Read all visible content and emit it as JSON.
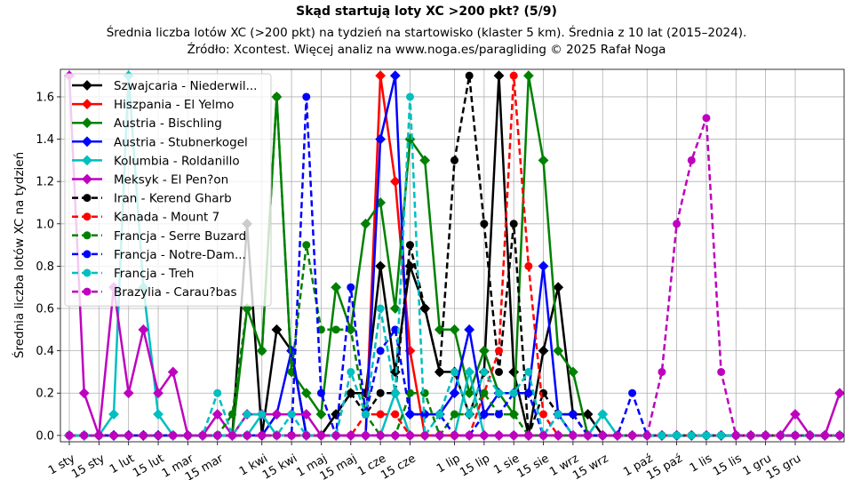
{
  "chart_data": {
    "type": "line",
    "title": "Skąd startują loty XC >200 pkt? (5/9)",
    "subtitle_lines": [
      "Średnia liczba lotów XC (>200 pkt) na tydzień na startowisko (klaster 5 km). Średnia z 10 lat (2015–2024).",
      "Źródło: Xcontest. Więcej analiz na www.noga.es/paragliding © 2025 Rafał Noga"
    ],
    "xlabel": "",
    "ylabel": "Średnia liczba lotów XC na tydzień",
    "x_unit": "week of year (1–53)",
    "xlim": [
      0.4,
      53.3
    ],
    "ylim": [
      -0.03,
      1.73
    ],
    "yticks": [
      0.0,
      0.2,
      0.4,
      0.6,
      0.8,
      1.0,
      1.2,
      1.4,
      1.6
    ],
    "ytick_labels": [
      "0.0",
      "0.2",
      "0.4",
      "0.6",
      "0.8",
      "1.0",
      "1.2",
      "1.4",
      "1.6"
    ],
    "xticks": [
      1,
      3,
      5,
      7,
      9,
      11,
      14,
      16,
      18,
      20,
      22,
      24,
      27,
      29,
      31,
      33,
      35,
      37,
      40,
      42,
      44,
      46,
      48,
      50
    ],
    "xtick_labels": [
      "1 sty",
      "15 sty",
      "1 lut",
      "15 lut",
      "1 mar",
      "15 mar",
      "1 kwi",
      "15 kwi",
      "1 maj",
      "15 maj",
      "1 cze",
      "15 cze",
      "1 lip",
      "15 lip",
      "1 sie",
      "15 sie",
      "1 wrz",
      "15 wrz",
      "1 paź",
      "15 paź",
      "1 lis",
      "15 lis",
      "1 gru",
      "15 gru"
    ],
    "grid": true,
    "legend_position": "upper-left",
    "series": [
      {
        "name": "Szwajcaria - Niederwil...",
        "color": "#000000",
        "dash": false,
        "marker": "diamond",
        "values": [
          0,
          0,
          0,
          0,
          0,
          0,
          0,
          0,
          0,
          0,
          0,
          0,
          1.0,
          0,
          0.5,
          0.4,
          0,
          0,
          0.1,
          0.2,
          0.2,
          0.8,
          0.3,
          0.8,
          0.6,
          0.3,
          0.3,
          0.1,
          0.3,
          1.7,
          0.3,
          0,
          0.4,
          0.7,
          0.1,
          0.1,
          0,
          0,
          0,
          0,
          0,
          0,
          0,
          0,
          0,
          0,
          0,
          0,
          0,
          0,
          0,
          0,
          0
        ]
      },
      {
        "name": "Hiszpania - El Yelmo",
        "color": "#ff0000",
        "dash": false,
        "marker": "diamond",
        "values": [
          0,
          0,
          0,
          0,
          0,
          0,
          0,
          0,
          0,
          0,
          0,
          0,
          0,
          0,
          0,
          0,
          0,
          0,
          0,
          0,
          0,
          1.7,
          1.2,
          0.4,
          0,
          0,
          0,
          0,
          0,
          0,
          0,
          0,
          0,
          0,
          0,
          0,
          0,
          0,
          0,
          0,
          0,
          0,
          0,
          0,
          0,
          0,
          0,
          0,
          0,
          0,
          0,
          0,
          0
        ]
      },
      {
        "name": "Austria - Bischling",
        "color": "#008000",
        "dash": false,
        "marker": "diamond",
        "values": [
          0,
          0,
          0,
          0,
          0,
          0,
          0,
          0,
          0,
          0,
          0,
          0,
          0.6,
          0.4,
          1.6,
          0.3,
          0.2,
          0.1,
          0.7,
          0.5,
          1.0,
          1.1,
          0.6,
          1.4,
          1.3,
          0.5,
          0.5,
          0.2,
          0.4,
          0.2,
          0.1,
          1.7,
          1.3,
          0.4,
          0.3,
          0,
          0,
          0,
          0,
          0,
          0,
          0,
          0,
          0,
          0,
          0,
          0,
          0,
          0,
          0,
          0,
          0,
          0
        ]
      },
      {
        "name": "Austria - Stubnerkogel",
        "color": "#0000ff",
        "dash": false,
        "marker": "diamond",
        "values": [
          0,
          0,
          0,
          0,
          0,
          0,
          0,
          0,
          0,
          0,
          0,
          0,
          0,
          0,
          0.1,
          0.4,
          0,
          0,
          0,
          0,
          0,
          1.4,
          1.7,
          0.1,
          0.1,
          0.1,
          0.2,
          0.5,
          0.1,
          0.2,
          0.2,
          0.2,
          0.8,
          0.1,
          0,
          0,
          0,
          0,
          0,
          0,
          0,
          0,
          0,
          0,
          0,
          0,
          0,
          0,
          0,
          0,
          0,
          0,
          0
        ]
      },
      {
        "name": "Kolumbia - Roldanillo",
        "color": "#00bfbf",
        "dash": false,
        "marker": "diamond",
        "values": [
          0,
          0,
          0,
          0.1,
          1.7,
          0.7,
          0.1,
          0,
          0,
          0,
          0,
          0,
          0,
          0.1,
          0,
          0,
          0,
          0,
          0,
          0,
          0,
          0,
          0.2,
          0,
          0,
          0,
          0,
          0.3,
          0,
          0,
          0,
          0,
          0,
          0,
          0,
          0,
          0.1,
          0,
          0,
          0,
          0,
          0,
          0,
          0,
          0,
          0,
          0,
          0,
          0,
          0,
          0,
          0,
          0
        ]
      },
      {
        "name": "Meksyk - El Pen?on",
        "color": "#bf00bf",
        "dash": false,
        "marker": "diamond",
        "values": [
          1.7,
          0.2,
          0,
          0.7,
          0.2,
          0.5,
          0.2,
          0.3,
          0,
          0,
          0.1,
          0,
          0.1,
          0.1,
          0.1,
          0.1,
          0.1,
          0,
          0,
          0,
          0,
          0,
          0,
          0,
          0,
          0,
          0,
          0,
          0,
          0,
          0,
          0,
          0,
          0,
          0,
          0,
          0,
          0,
          0,
          0,
          0,
          0,
          0,
          0,
          0,
          0,
          0,
          0,
          0,
          0.1,
          0,
          0,
          0.2
        ]
      },
      {
        "name": "Iran - Kerend Gharb",
        "color": "#000000",
        "dash": true,
        "marker": "circle",
        "values": [
          0,
          0,
          0,
          0,
          0,
          0,
          0,
          0,
          0,
          0,
          0,
          0,
          0,
          0,
          0,
          0,
          0,
          0,
          0.1,
          0.2,
          0.1,
          0.2,
          0.2,
          0.9,
          0.6,
          0.3,
          1.3,
          1.7,
          1.0,
          0.3,
          1.0,
          0,
          0.2,
          0.1,
          0.1,
          0,
          0,
          0,
          0,
          0,
          0,
          0,
          0,
          0,
          0,
          0,
          0,
          0,
          0,
          0,
          0,
          0,
          0
        ]
      },
      {
        "name": "Kanada - Mount 7",
        "color": "#ff0000",
        "dash": true,
        "marker": "circle",
        "values": [
          0,
          0,
          0,
          0,
          0,
          0,
          0,
          0,
          0,
          0,
          0,
          0,
          0,
          0,
          0,
          0,
          0,
          0,
          0,
          0,
          0.1,
          0.1,
          0.1,
          0,
          0,
          0,
          0,
          0,
          0.2,
          0.4,
          1.7,
          0.8,
          0.1,
          0,
          0,
          0,
          0,
          0,
          0,
          0,
          0,
          0,
          0,
          0,
          0,
          0,
          0,
          0,
          0,
          0,
          0,
          0,
          0
        ]
      },
      {
        "name": "Francja - Serre Buzard",
        "color": "#008000",
        "dash": true,
        "marker": "circle",
        "values": [
          0,
          0,
          0,
          0,
          0,
          0,
          0,
          0,
          0,
          0,
          0,
          0.1,
          0.6,
          0.4,
          1.6,
          0.3,
          0.9,
          0.5,
          0.5,
          0.5,
          0.1,
          0,
          0,
          0.2,
          0.2,
          0,
          0.1,
          0.1,
          0.2,
          0.1,
          0.1,
          0,
          0,
          0,
          0,
          0,
          0,
          0,
          0,
          0,
          0,
          0,
          0,
          0,
          0,
          0,
          0,
          0,
          0,
          0,
          0,
          0,
          0
        ]
      },
      {
        "name": "Francja - Notre-Dam...",
        "color": "#0000ff",
        "dash": true,
        "marker": "circle",
        "values": [
          0,
          0,
          0,
          0,
          0,
          0,
          0,
          0,
          0,
          0,
          0,
          0,
          0,
          0,
          0,
          0,
          1.6,
          0.2,
          0,
          0.7,
          0.1,
          0.4,
          0.5,
          0.1,
          0.1,
          0.1,
          0,
          0,
          0.1,
          0.1,
          0.2,
          0.2,
          0,
          0.1,
          0.1,
          0,
          0,
          0,
          0.2,
          0,
          0,
          0,
          0,
          0,
          0,
          0,
          0,
          0,
          0,
          0,
          0,
          0,
          0
        ]
      },
      {
        "name": "Francja - Treh",
        "color": "#00bfbf",
        "dash": true,
        "marker": "circle",
        "values": [
          0,
          0,
          0,
          0,
          0,
          0,
          0,
          0,
          0,
          0,
          0.2,
          0,
          0.1,
          0.1,
          0,
          0.1,
          0,
          0,
          0,
          0.3,
          0.1,
          0.6,
          0.2,
          1.6,
          0,
          0.1,
          0.3,
          0.1,
          0.3,
          0.2,
          0.2,
          0.3,
          0,
          0.1,
          0,
          0,
          0.1,
          0,
          0,
          0,
          0,
          0,
          0,
          0,
          0,
          0,
          0,
          0,
          0,
          0,
          0,
          0,
          0
        ]
      },
      {
        "name": "Brazylia - Carau?bas",
        "color": "#bf00bf",
        "dash": true,
        "marker": "circle",
        "values": [
          0,
          0,
          0,
          0,
          0,
          0,
          0,
          0,
          0,
          0,
          0,
          0,
          0,
          0,
          0,
          0,
          0,
          0,
          0,
          0,
          0,
          0,
          0,
          0,
          0,
          0,
          0,
          0,
          0,
          0,
          0,
          0,
          0,
          0,
          0,
          0,
          0,
          0,
          0,
          0,
          0.3,
          1.0,
          1.3,
          1.5,
          0.3,
          0,
          0,
          0,
          0,
          0,
          0,
          0,
          0
        ]
      }
    ]
  }
}
